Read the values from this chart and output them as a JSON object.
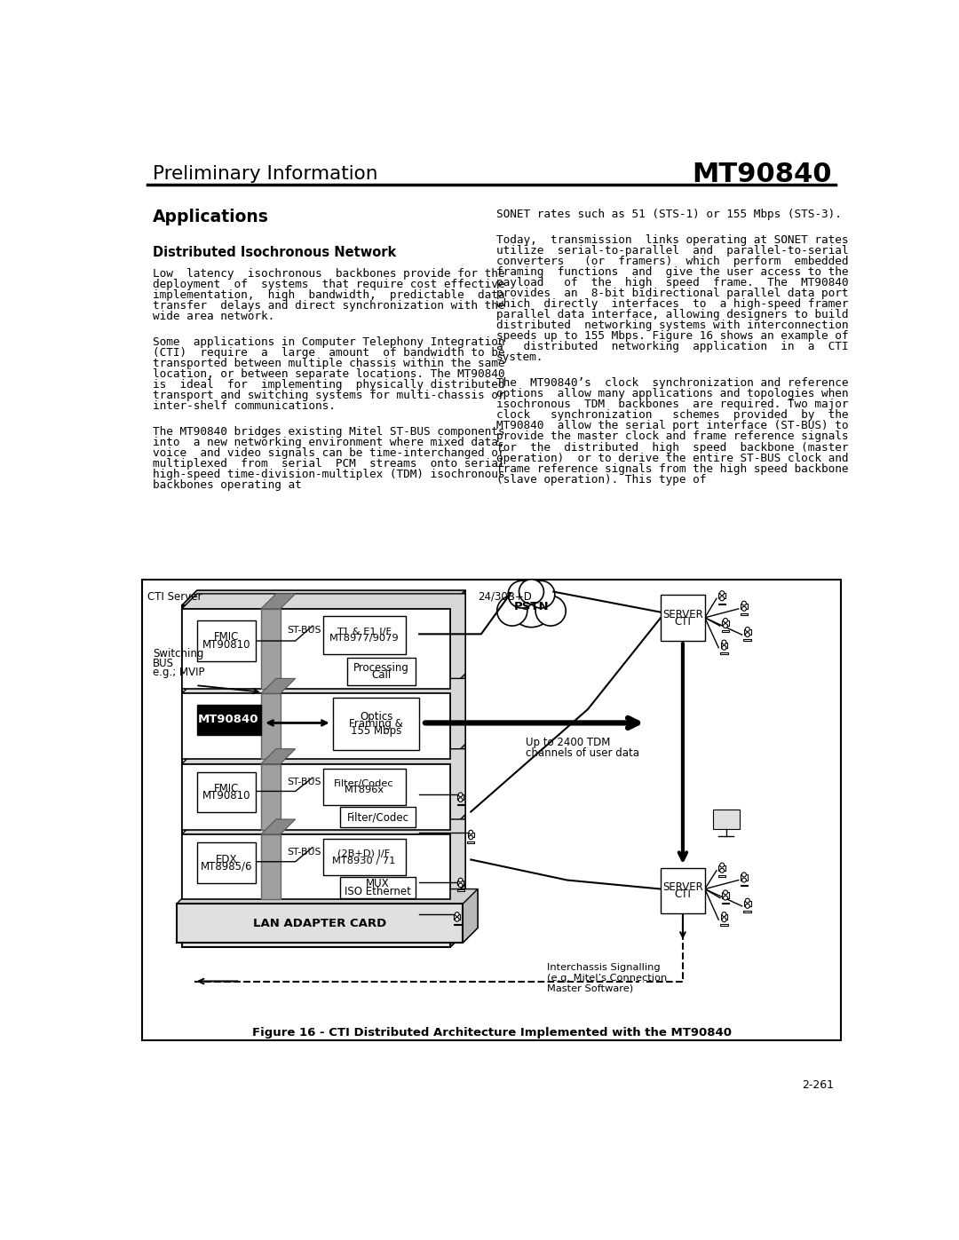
{
  "page_bg": "#ffffff",
  "title_left": "Preliminary Information",
  "title_right": "MT90840",
  "section_title": "Applications",
  "subsection_title": "Distributed Isochronous Network",
  "left_col_para1": "Low latency isochronous backbones provide for the deployment of systems that require cost effective implementation, high bandwidth, predictable data transfer delays and direct synchronization with the wide area network.",
  "left_col_para2": "Some applications in Computer Telephony Integration (CTI) require a large amount of bandwidth to be transported between multiple chassis within the same location, or between separate locations. The MT90840 is ideal for implementing physically distributed transport and switching systems for multi-chassis or inter-shelf communications.",
  "left_col_para3": "The MT90840 bridges existing Mitel ST-BUS components into a new networking environment where mixed data, voice and video signals can be time-interchanged or multiplexed from serial PCM streams onto serial high-speed time-division-multiplex (TDM) isochronous backbones operating at",
  "right_col_para1": "SONET rates such as 51 (STS-1) or 155 Mbps (STS-3).",
  "right_col_para2": "Today, transmission links operating at SONET rates utilize serial-to-parallel and parallel-to-serial converters (or framers) which perform embedded framing functions and give the user access to the payload of the high speed frame. The MT90840 provides an 8-bit bidirectional parallel data port which directly interfaces to a high-speed framer parallel data interface, allowing designers to build distributed networking systems with interconnection speeds up to 155 Mbps. Figure 16 shows an example of a distributed networking application in a CTI system.",
  "right_col_para3": "The MT90840’s clock synchronization and reference options allow many applications and topologies when isochronous TDM backbones are required. Two major clock synchronization schemes provided by the MT90840 allow the serial port interface (ST-BUS) to provide the master clock and frame reference signals for the distributed high speed backbone (master operation) or to derive the entire ST-BUS clock and frame reference signals from the high speed backbone (slave operation). This type of",
  "figure_caption": "Figure 16 - CTI Distributed Architecture Implemented with the MT90840",
  "page_number": "2-261"
}
